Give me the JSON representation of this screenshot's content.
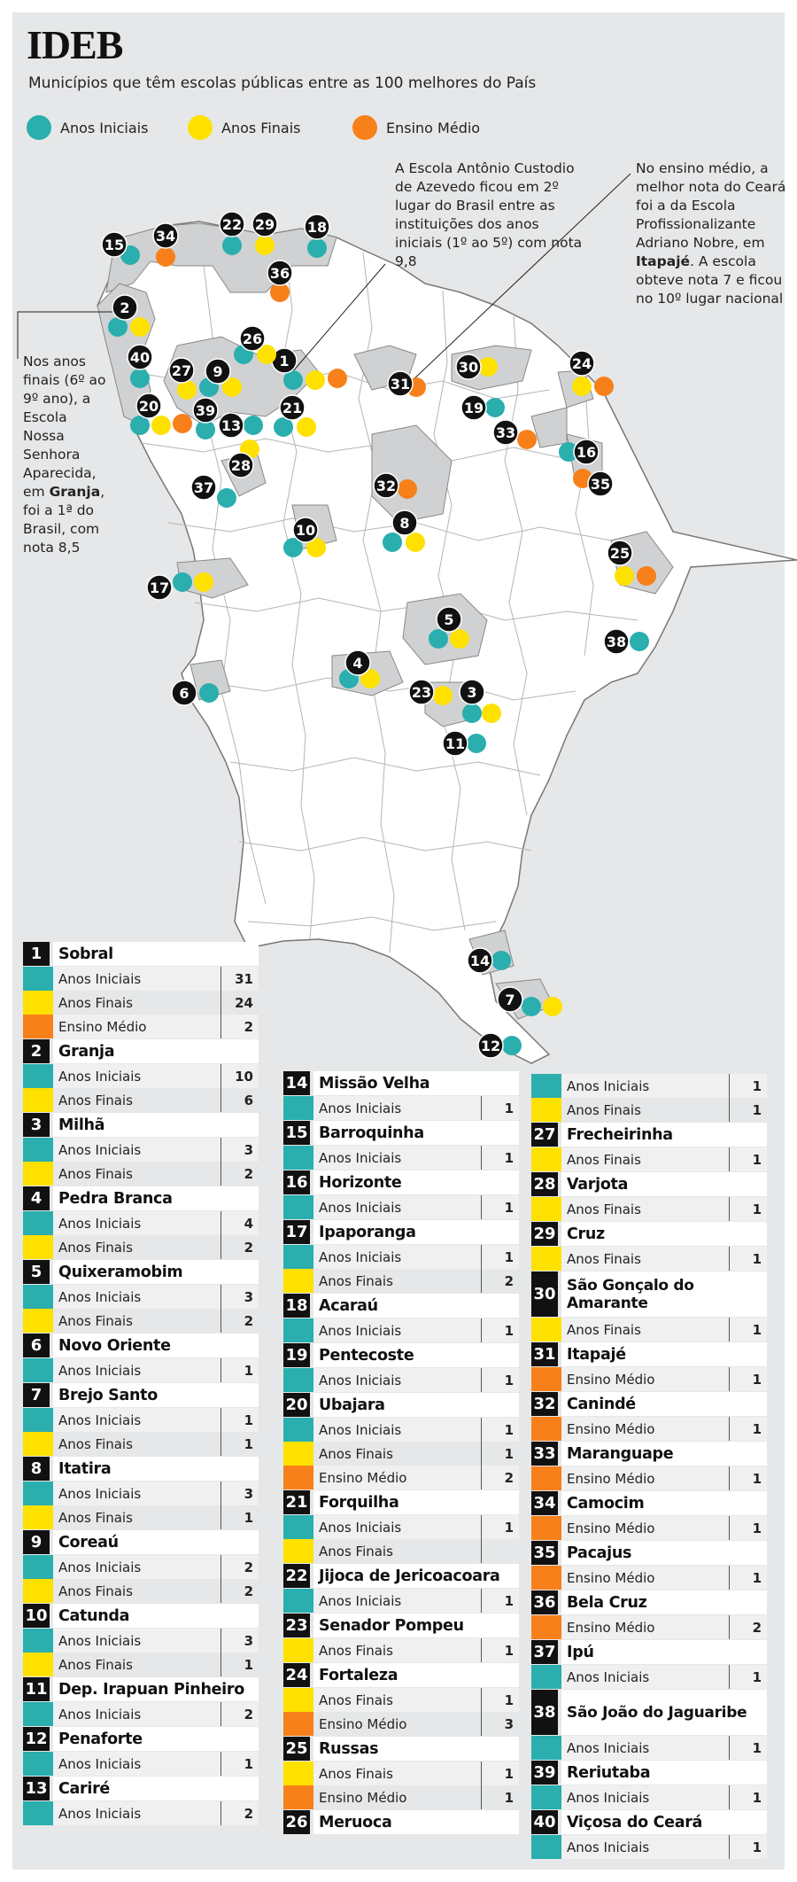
{
  "header": {
    "title": "IDEB",
    "subtitle": "Municípios que têm escolas públicas entre as 100 melhores do País"
  },
  "legend": [
    {
      "label": "Anos Iniciais",
      "color": "#2aaeae"
    },
    {
      "label": "Anos Finais",
      "color": "#ffe100"
    },
    {
      "label": "Ensino Médio",
      "color": "#f7801b"
    }
  ],
  "annotations": {
    "sobral": "A Escola Antônio Custodio de Azevedo ficou em 2º lugar do Brasil entre as instituições dos anos iniciais (1º ao 5º) com nota 9,8",
    "itapaje": {
      "pre": "No ensino médio, a melhor nota do Ceará foi a da Escola Profissionalizante Adriano Nobre, em ",
      "city": "Itapajé",
      "post": ". A escola obteve nota 7 e  ficou no 10º lugar nacional"
    },
    "granja": {
      "pre": "Nos anos finais (6º ao 9º ano), a Escola Nossa Senhora Aparecida, em ",
      "city": "Granja",
      "post": ", foi a 1ª do Brasil, com nota 8,5"
    }
  },
  "municipalities": [
    {
      "n": "1",
      "name": "Sobral",
      "rows": [
        [
          "Anos Iniciais",
          "31",
          "teal"
        ],
        [
          "Anos Finais",
          "24",
          "yell"
        ],
        [
          "Ensino Médio",
          "2",
          "orng"
        ]
      ]
    },
    {
      "n": "2",
      "name": "Granja",
      "rows": [
        [
          "Anos Iniciais",
          "10",
          "teal"
        ],
        [
          "Anos Finais",
          "6",
          "yell"
        ]
      ]
    },
    {
      "n": "3",
      "name": "Milhã",
      "rows": [
        [
          "Anos Iniciais",
          "3",
          "teal"
        ],
        [
          "Anos Finais",
          "2",
          "yell"
        ]
      ]
    },
    {
      "n": "4",
      "name": "Pedra Branca",
      "rows": [
        [
          "Anos Iniciais",
          "4",
          "teal"
        ],
        [
          "Anos Finais",
          "2",
          "yell"
        ]
      ]
    },
    {
      "n": "5",
      "name": "Quixeramobim",
      "rows": [
        [
          "Anos Iniciais",
          "3",
          "teal"
        ],
        [
          "Anos Finais",
          "2",
          "yell"
        ]
      ]
    },
    {
      "n": "6",
      "name": "Novo Oriente",
      "rows": [
        [
          "Anos Iniciais",
          "1",
          "teal"
        ]
      ]
    },
    {
      "n": "7",
      "name": "Brejo Santo",
      "rows": [
        [
          "Anos Iniciais",
          "1",
          "teal"
        ],
        [
          "Anos Finais",
          "1",
          "yell"
        ]
      ]
    },
    {
      "n": "8",
      "name": "Itatira",
      "rows": [
        [
          "Anos Iniciais",
          "3",
          "teal"
        ],
        [
          "Anos Finais",
          "1",
          "yell"
        ]
      ]
    },
    {
      "n": "9",
      "name": "Coreaú",
      "rows": [
        [
          "Anos Iniciais",
          "2",
          "teal"
        ],
        [
          "Anos Finais",
          "2",
          "yell"
        ]
      ]
    },
    {
      "n": "10",
      "name": "Catunda",
      "rows": [
        [
          "Anos Iniciais",
          "3",
          "teal"
        ],
        [
          "Anos Finais",
          "1",
          "yell"
        ]
      ]
    },
    {
      "n": "11",
      "name": "Dep. Irapuan Pinheiro",
      "rows": [
        [
          "Anos Iniciais",
          "2",
          "teal"
        ]
      ]
    },
    {
      "n": "12",
      "name": "Penaforte",
      "rows": [
        [
          "Anos Iniciais",
          "1",
          "teal"
        ]
      ]
    },
    {
      "n": "13",
      "name": "Cariré",
      "rows": [
        [
          "Anos Iniciais",
          "2",
          "teal"
        ]
      ]
    },
    {
      "n": "14",
      "name": "Missão Velha",
      "rows": [
        [
          "Anos Iniciais",
          "1",
          "teal"
        ]
      ]
    },
    {
      "n": "15",
      "name": "Barroquinha",
      "rows": [
        [
          "Anos Iniciais",
          "1",
          "teal"
        ]
      ]
    },
    {
      "n": "16",
      "name": "Horizonte",
      "rows": [
        [
          "Anos Iniciais",
          "1",
          "teal"
        ]
      ]
    },
    {
      "n": "17",
      "name": "Ipaporanga",
      "rows": [
        [
          "Anos Iniciais",
          "1",
          "teal"
        ],
        [
          "Anos Finais",
          "2",
          "yell"
        ]
      ]
    },
    {
      "n": "18",
      "name": "Acaraú",
      "rows": [
        [
          "Anos Iniciais",
          "1",
          "teal"
        ]
      ]
    },
    {
      "n": "19",
      "name": "Pentecoste",
      "rows": [
        [
          "Anos Iniciais",
          "1",
          "teal"
        ]
      ]
    },
    {
      "n": "20",
      "name": "Ubajara",
      "rows": [
        [
          "Anos Iniciais",
          "1",
          "teal"
        ],
        [
          "Anos Finais",
          "1",
          "yell"
        ],
        [
          "Ensino Médio",
          "2",
          "orng"
        ]
      ]
    },
    {
      "n": "21",
      "name": "Forquilha",
      "rows": [
        [
          "Anos Iniciais",
          "1",
          "teal"
        ],
        [
          "Anos Finais",
          "",
          "yell"
        ]
      ]
    },
    {
      "n": "22",
      "name": "Jijoca de Jericoacoara",
      "rows": [
        [
          "Anos Iniciais",
          "1",
          "teal"
        ]
      ]
    },
    {
      "n": "23",
      "name": "Senador Pompeu",
      "rows": [
        [
          "Anos Finais",
          "1",
          "yell"
        ]
      ]
    },
    {
      "n": "24",
      "name": "Fortaleza",
      "rows": [
        [
          "Anos Finais",
          "1",
          "yell"
        ],
        [
          "Ensino Médio",
          "3",
          "orng"
        ]
      ]
    },
    {
      "n": "25",
      "name": "Russas",
      "rows": [
        [
          "Anos Finais",
          "1",
          "yell"
        ],
        [
          "Ensino Médio",
          "1",
          "orng"
        ]
      ]
    },
    {
      "n": "26",
      "name": "Meruoca",
      "rows": [
        [
          "Anos Iniciais",
          "1",
          "teal"
        ],
        [
          "Anos Finais",
          "1",
          "yell"
        ]
      ]
    },
    {
      "n": "27",
      "name": "Frecheirinha",
      "rows": [
        [
          "Anos Finais",
          "1",
          "yell"
        ]
      ]
    },
    {
      "n": "28",
      "name": "Varjota",
      "rows": [
        [
          "Anos Finais",
          "1",
          "yell"
        ]
      ]
    },
    {
      "n": "29",
      "name": "Cruz",
      "rows": [
        [
          "Anos Finais",
          "1",
          "yell"
        ]
      ]
    },
    {
      "n": "30",
      "name": "São Gonçalo do Amarante",
      "rows": [
        [
          "Anos Finais",
          "1",
          "yell"
        ]
      ]
    },
    {
      "n": "31",
      "name": "Itapajé",
      "rows": [
        [
          "Ensino Médio",
          "1",
          "orng"
        ]
      ]
    },
    {
      "n": "32",
      "name": "Canindé",
      "rows": [
        [
          "Ensino Médio",
          "1",
          "orng"
        ]
      ]
    },
    {
      "n": "33",
      "name": "Maranguape",
      "rows": [
        [
          "Ensino Médio",
          "1",
          "orng"
        ]
      ]
    },
    {
      "n": "34",
      "name": "Camocim",
      "rows": [
        [
          "Ensino Médio",
          "1",
          "orng"
        ]
      ]
    },
    {
      "n": "35",
      "name": "Pacajus",
      "rows": [
        [
          "Ensino Médio",
          "1",
          "orng"
        ]
      ]
    },
    {
      "n": "36",
      "name": "Bela Cruz",
      "rows": [
        [
          "Ensino Médio",
          "2",
          "orng"
        ]
      ]
    },
    {
      "n": "37",
      "name": "Ipú",
      "rows": [
        [
          "Anos Iniciais",
          "1",
          "teal"
        ]
      ]
    },
    {
      "n": "38",
      "name": "São João do Jaguaribe",
      "rows": [
        [
          "Anos Iniciais",
          "1",
          "teal"
        ]
      ]
    },
    {
      "n": "39",
      "name": "Reriutaba",
      "rows": [
        [
          "Anos Iniciais",
          "1",
          "teal"
        ]
      ]
    },
    {
      "n": "40",
      "name": "Viçosa do Ceará",
      "rows": [
        [
          "Anos Iniciais",
          "1",
          "teal"
        ]
      ]
    }
  ],
  "markers": [
    {
      "n": "1",
      "dots": [
        "teal",
        "yell",
        "orng"
      ]
    },
    {
      "n": "2",
      "dots": [
        "teal",
        "yell"
      ]
    },
    {
      "n": "3",
      "dots": [
        "teal",
        "yell"
      ]
    },
    {
      "n": "4",
      "dots": [
        "teal",
        "yell"
      ]
    },
    {
      "n": "5",
      "dots": [
        "teal",
        "yell"
      ]
    },
    {
      "n": "6",
      "dots": [
        "teal"
      ]
    },
    {
      "n": "7",
      "dots": [
        "teal",
        "yell"
      ]
    },
    {
      "n": "8",
      "dots": [
        "teal",
        "yell"
      ]
    },
    {
      "n": "9",
      "dots": [
        "teal",
        "yell"
      ]
    },
    {
      "n": "10",
      "dots": [
        "teal",
        "yell"
      ]
    },
    {
      "n": "11",
      "dots": [
        "teal"
      ]
    },
    {
      "n": "12",
      "dots": [
        "teal"
      ]
    },
    {
      "n": "13",
      "dots": [
        "teal"
      ]
    },
    {
      "n": "14",
      "dots": [
        "teal"
      ]
    },
    {
      "n": "15",
      "dots": [
        "teal"
      ]
    },
    {
      "n": "16",
      "dots": [
        "teal"
      ]
    },
    {
      "n": "17",
      "dots": [
        "teal",
        "yell"
      ]
    },
    {
      "n": "18",
      "dots": [
        "teal"
      ]
    },
    {
      "n": "19",
      "dots": [
        "teal"
      ]
    },
    {
      "n": "20",
      "dots": [
        "teal",
        "yell",
        "orng"
      ]
    },
    {
      "n": "21",
      "dots": [
        "teal",
        "yell"
      ]
    },
    {
      "n": "22",
      "dots": [
        "teal"
      ]
    },
    {
      "n": "23",
      "dots": [
        "yell"
      ]
    },
    {
      "n": "24",
      "dots": [
        "yell",
        "orng"
      ]
    },
    {
      "n": "25",
      "dots": [
        "yell",
        "orng"
      ]
    },
    {
      "n": "26",
      "dots": [
        "teal",
        "yell"
      ]
    },
    {
      "n": "27",
      "dots": [
        "yell"
      ]
    },
    {
      "n": "28",
      "dots": [
        "yell"
      ]
    },
    {
      "n": "29",
      "dots": [
        "yell"
      ]
    },
    {
      "n": "30",
      "dots": [
        "yell"
      ]
    },
    {
      "n": "31",
      "dots": [
        "orng"
      ]
    },
    {
      "n": "32",
      "dots": [
        "orng"
      ]
    },
    {
      "n": "33",
      "dots": [
        "orng"
      ]
    },
    {
      "n": "34",
      "dots": [
        "orng"
      ]
    },
    {
      "n": "35",
      "dots": [
        "orng"
      ]
    },
    {
      "n": "36",
      "dots": [
        "orng"
      ]
    },
    {
      "n": "37",
      "dots": [
        "teal"
      ]
    },
    {
      "n": "38",
      "dots": [
        "teal"
      ]
    },
    {
      "n": "39",
      "dots": [
        "teal"
      ]
    },
    {
      "n": "40",
      "dots": [
        "teal"
      ]
    }
  ],
  "colors": {
    "teal": "#2aaeae",
    "yell": "#ffe100",
    "orng": "#f7801b"
  }
}
